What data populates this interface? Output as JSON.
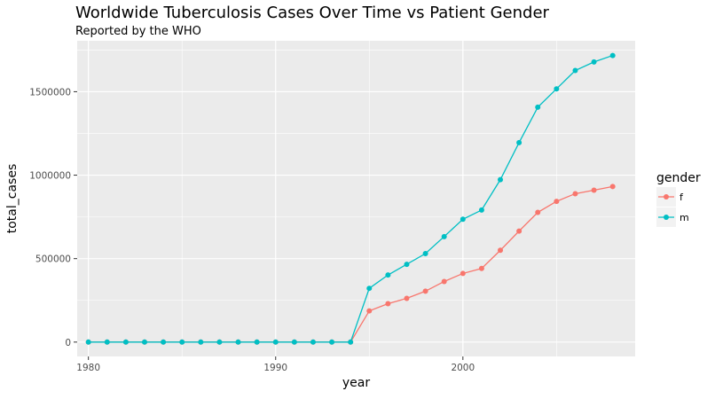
{
  "chart_data": {
    "type": "line",
    "title": "Worldwide Tuberculosis Cases Over Time vs Patient Gender",
    "subtitle": "Reported by the WHO",
    "xlabel": "year",
    "ylabel": "total_cases",
    "xlim": [
      1979.4,
      2009.2
    ],
    "ylim": [
      -86000,
      1805000
    ],
    "x_ticks": [
      1980,
      1990,
      2000
    ],
    "y_ticks": [
      0,
      500000,
      1000000,
      1500000
    ],
    "x_tick_labels": [
      "1980",
      "1990",
      "2000"
    ],
    "y_tick_labels": [
      "0",
      "500000",
      "1000000",
      "1500000"
    ],
    "grid": true,
    "legend": {
      "title": "gender",
      "position": "right"
    },
    "x": [
      1980,
      1981,
      1982,
      1983,
      1984,
      1985,
      1986,
      1987,
      1988,
      1989,
      1990,
      1991,
      1992,
      1993,
      1994,
      1995,
      1996,
      1997,
      1998,
      1999,
      2000,
      2001,
      2002,
      2003,
      2004,
      2005,
      2006,
      2007,
      2008
    ],
    "series": [
      {
        "name": "f",
        "color": "#F8766D",
        "values": [
          0,
          0,
          0,
          0,
          0,
          0,
          0,
          0,
          0,
          0,
          0,
          0,
          0,
          0,
          0,
          187000,
          230000,
          262000,
          305000,
          363000,
          411000,
          441000,
          550000,
          665000,
          777000,
          843000,
          889000,
          910000,
          932000
        ]
      },
      {
        "name": "m",
        "color": "#00BFC4",
        "values": [
          0,
          0,
          0,
          0,
          0,
          0,
          0,
          0,
          0,
          0,
          0,
          0,
          0,
          0,
          0,
          322000,
          402000,
          466000,
          530000,
          632000,
          736000,
          791000,
          973000,
          1195000,
          1407000,
          1517000,
          1627000,
          1678000,
          1717000
        ]
      }
    ]
  }
}
